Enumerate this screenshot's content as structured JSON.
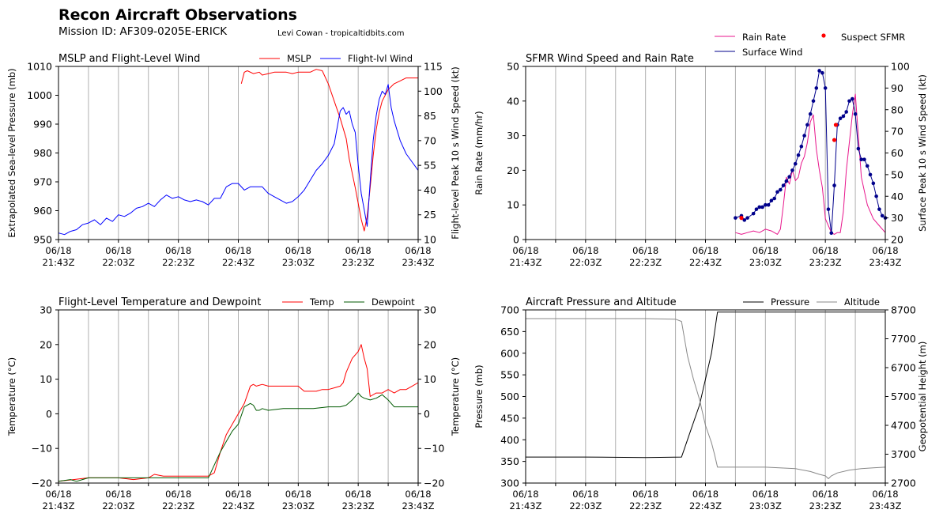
{
  "header": {
    "title": "Recon Aircraft Observations",
    "mission": "Mission ID: AF309-0205E-ERICK",
    "credit": "Levi Cowan - tropicaltidbits.com"
  },
  "time_ticks": [
    {
      "date": "06/18",
      "time": "21:43Z"
    },
    {
      "date": "06/18",
      "time": "22:03Z"
    },
    {
      "date": "06/18",
      "time": "22:23Z"
    },
    {
      "date": "06/18",
      "time": "22:43Z"
    },
    {
      "date": "06/18",
      "time": "23:03Z"
    },
    {
      "date": "06/18",
      "time": "23:23Z"
    },
    {
      "date": "06/18",
      "time": "23:43Z"
    }
  ],
  "colors": {
    "mslp": "#ff0000",
    "wind": "#0000ff",
    "rain": "#e8168c",
    "sfmr": "#00008b",
    "suspect": "#ff0000",
    "temp": "#ff0000",
    "dew": "#005a00",
    "pressure": "#000000",
    "altitude": "#888888",
    "grid": "#b0b0b0"
  },
  "chart_data": [
    {
      "id": "mslp-wind",
      "type": "line",
      "title": "MSLP and Flight-Level Wind",
      "x_unit": "minutes after 21:43Z",
      "xlim": [
        0,
        120
      ],
      "ylabel_left": "Extrapolated Sea-level Pressure (mb)",
      "ylabel_right": "Flight-level Peak 10 s Wind Speed (kt)",
      "ylim_left": [
        950,
        1010
      ],
      "ylim_right": [
        10,
        115
      ],
      "yticks_left": [
        "950",
        "960",
        "970",
        "980",
        "990",
        "1000",
        "1010"
      ],
      "yticks_right": [
        "10",
        "25",
        "40",
        "55",
        "70",
        "85",
        "100",
        "115"
      ],
      "series": [
        {
          "name": "MSLP",
          "axis": "left",
          "x": [
            61,
            62,
            63,
            65,
            67,
            68,
            70,
            72,
            74,
            76,
            78,
            80,
            82,
            84,
            86,
            88,
            90,
            92,
            94,
            96,
            97,
            99,
            101,
            102,
            103,
            104,
            105,
            106,
            107,
            108,
            110,
            112,
            114,
            116,
            118,
            120
          ],
          "values": [
            1004,
            1008,
            1008.5,
            1007.5,
            1008,
            1007,
            1007.5,
            1008,
            1008,
            1008,
            1007.5,
            1008,
            1008,
            1008,
            1009,
            1008.5,
            1004,
            998,
            992,
            985,
            978,
            968,
            957,
            953,
            958,
            968,
            979,
            988,
            994,
            998,
            1002,
            1004,
            1005,
            1006,
            1006,
            1006
          ]
        },
        {
          "name": "Flight-lvl Wind",
          "axis": "right",
          "x": [
            0,
            2,
            4,
            6,
            8,
            10,
            12,
            14,
            16,
            18,
            20,
            22,
            24,
            26,
            28,
            30,
            32,
            34,
            36,
            38,
            40,
            42,
            44,
            46,
            48,
            50,
            52,
            54,
            56,
            58,
            60,
            62,
            64,
            66,
            68,
            70,
            72,
            74,
            76,
            78,
            80,
            82,
            84,
            86,
            88,
            90,
            92,
            94,
            95,
            96,
            97,
            98,
            99,
            100,
            101,
            102,
            103,
            104,
            105,
            106,
            107,
            108,
            109,
            110,
            111,
            112,
            114,
            116,
            118,
            120
          ],
          "values": [
            14,
            13,
            15,
            16,
            19,
            20,
            22,
            19,
            23,
            21,
            25,
            24,
            26,
            29,
            30,
            32,
            30,
            34,
            37,
            35,
            36,
            34,
            33,
            34,
            33,
            31,
            35,
            35,
            42,
            44,
            44,
            40,
            42,
            42,
            42,
            38,
            36,
            34,
            32,
            33,
            36,
            40,
            46,
            52,
            56,
            61,
            68,
            88,
            90,
            86,
            88,
            80,
            75,
            55,
            38,
            28,
            18,
            45,
            70,
            85,
            95,
            100,
            98,
            104,
            90,
            82,
            70,
            62,
            57,
            52
          ]
        }
      ]
    },
    {
      "id": "sfmr-rain",
      "type": "line",
      "title": "SFMR Wind Speed and Rain Rate",
      "x_unit": "minutes after 21:43Z",
      "xlim": [
        0,
        120
      ],
      "ylabel_left": "Rain Rate (mm/hr)",
      "ylabel_right": "Surface Peak 10 s Wind Speed (kt)",
      "ylim_left": [
        0,
        50
      ],
      "ylim_right": [
        20,
        100
      ],
      "yticks_left": [
        "0",
        "10",
        "20",
        "30",
        "40",
        "50"
      ],
      "yticks_right": [
        "20",
        "30",
        "40",
        "50",
        "60",
        "70",
        "80",
        "90",
        "100"
      ],
      "series": [
        {
          "name": "Rain Rate",
          "axis": "left",
          "x": [
            70,
            72,
            74,
            76,
            78,
            80,
            82,
            84,
            85,
            86,
            87,
            88,
            89,
            90,
            91,
            92,
            93,
            94,
            95,
            96,
            97,
            98,
            99,
            100,
            101,
            102,
            103,
            104,
            105,
            106,
            107,
            108,
            109,
            110,
            111,
            112,
            114,
            116,
            118,
            120
          ],
          "values": [
            2,
            1.5,
            2,
            2.5,
            2,
            3,
            2.5,
            1.5,
            3,
            10,
            18,
            16,
            20,
            17,
            18,
            22,
            24,
            28,
            34,
            36,
            26,
            20,
            15,
            6,
            4,
            2,
            1.5,
            2,
            2,
            8,
            20,
            28,
            36,
            42,
            30,
            18,
            10,
            6,
            4,
            2
          ]
        },
        {
          "name": "Surface Wind",
          "axis": "right",
          "x": [
            70,
            72,
            73,
            74,
            76,
            77,
            78,
            79,
            80,
            81,
            82,
            83,
            84,
            85,
            86,
            87,
            88,
            89,
            90,
            91,
            92,
            93,
            94,
            95,
            96,
            97,
            98,
            99,
            100,
            101,
            102,
            103,
            104,
            105,
            106,
            107,
            108,
            109,
            110,
            111,
            112,
            113,
            114,
            115,
            116,
            117,
            118,
            119,
            120
          ],
          "values": [
            30,
            31,
            29,
            30,
            32,
            34,
            35,
            35,
            36,
            36,
            38,
            39,
            42,
            43,
            45,
            47,
            49,
            52,
            55,
            59,
            63,
            68,
            73,
            78,
            84,
            90,
            98,
            97,
            90,
            34,
            23,
            45,
            73,
            76,
            77,
            79,
            84,
            85,
            78,
            62,
            57,
            57,
            54,
            50,
            46,
            40,
            34,
            31,
            30
          ]
        },
        {
          "name": "Suspect SFMR",
          "axis": "right",
          "kind": "scatter",
          "x": [
            72,
            103,
            103.5
          ],
          "values": [
            30,
            66,
            73
          ]
        }
      ]
    },
    {
      "id": "temp-dew",
      "type": "line",
      "title": "Flight-Level Temperature and Dewpoint",
      "x_unit": "minutes after 21:43Z",
      "xlim": [
        0,
        120
      ],
      "ylabel_left": "Temperature (°C)",
      "ylabel_right": "Temperature (°C)",
      "ylim_left": [
        -20,
        30
      ],
      "ylim_right": [
        -20,
        30
      ],
      "yticks_left": [
        "−20",
        "−10",
        "0",
        "10",
        "20",
        "30"
      ],
      "yticks_right": [
        "−20",
        "−10",
        "0",
        "10",
        "20",
        "30"
      ],
      "series": [
        {
          "name": "Temp",
          "axis": "left",
          "x": [
            0,
            5,
            10,
            15,
            20,
            25,
            30,
            32,
            35,
            40,
            45,
            50,
            52,
            54,
            56,
            58,
            60,
            62,
            64,
            65,
            66,
            68,
            70,
            72,
            74,
            76,
            78,
            80,
            82,
            84,
            86,
            88,
            90,
            92,
            94,
            95,
            96,
            97,
            98,
            99,
            100,
            101,
            102,
            103,
            104,
            106,
            108,
            110,
            112,
            114,
            116,
            118,
            120
          ],
          "values": [
            -19.5,
            -19,
            -18.5,
            -18.5,
            -18.5,
            -19,
            -18.5,
            -17.5,
            -18,
            -18,
            -18,
            -18,
            -17,
            -11,
            -6,
            -3,
            0,
            3,
            8,
            8.5,
            8,
            8.5,
            8,
            8,
            8,
            8,
            8,
            8,
            6.5,
            6.5,
            6.5,
            7,
            7,
            7.5,
            8,
            9,
            12,
            14,
            16,
            17,
            18,
            20,
            16,
            13,
            5,
            6,
            6,
            7,
            6,
            7,
            7,
            8,
            9
          ]
        },
        {
          "name": "Dewpoint",
          "axis": "left",
          "x": [
            0,
            4,
            6,
            8,
            10,
            15,
            20,
            25,
            30,
            35,
            40,
            45,
            50,
            54,
            56,
            58,
            60,
            62,
            64,
            65,
            66,
            67,
            68,
            70,
            75,
            80,
            85,
            90,
            94,
            96,
            98,
            100,
            101,
            102,
            104,
            106,
            108,
            110,
            112,
            114,
            116,
            118,
            120
          ],
          "values": [
            -19.5,
            -19,
            -19.5,
            -19,
            -18.5,
            -18.5,
            -18.5,
            -18.5,
            -18.5,
            -18.5,
            -18.5,
            -18.5,
            -18.5,
            -11,
            -8,
            -5,
            -3,
            2,
            3,
            2.5,
            1,
            1,
            1.5,
            1,
            1.5,
            1.5,
            1.5,
            2,
            2,
            2.5,
            4,
            6,
            5,
            4.5,
            4,
            4.5,
            5.5,
            4,
            2,
            2,
            2,
            2,
            2
          ]
        }
      ]
    },
    {
      "id": "pressure-altitude",
      "type": "line",
      "title": "Aircraft Pressure and Altitude",
      "x_unit": "minutes after 21:43Z",
      "xlim": [
        0,
        120
      ],
      "ylabel_left": "Pressure (mb)",
      "ylabel_right": "Geopotential Height (m)",
      "ylim_left": [
        300,
        700
      ],
      "ylim_right": [
        2700,
        8700
      ],
      "yticks_left": [
        "300",
        "350",
        "400",
        "450",
        "500",
        "550",
        "600",
        "650",
        "700"
      ],
      "yticks_right": [
        "2700",
        "3700",
        "4700",
        "5700",
        "6700",
        "7700",
        "8700"
      ],
      "series": [
        {
          "name": "Pressure",
          "axis": "left",
          "x": [
            0,
            20,
            40,
            52,
            53,
            55,
            58,
            60,
            62,
            64,
            80,
            100,
            120
          ],
          "values": [
            360,
            360,
            359,
            360,
            380,
            420,
            480,
            540,
            600,
            695,
            695,
            695,
            695
          ]
        },
        {
          "name": "Altitude",
          "axis": "right",
          "x": [
            0,
            20,
            40,
            50,
            52,
            54,
            56,
            58,
            60,
            62,
            63,
            64,
            70,
            80,
            90,
            95,
            98,
            100,
            101,
            102,
            104,
            108,
            112,
            116,
            120
          ],
          "values": [
            8400,
            8400,
            8400,
            8380,
            8300,
            7100,
            6300,
            5600,
            4700,
            4100,
            3700,
            3250,
            3250,
            3250,
            3200,
            3100,
            3000,
            2950,
            2850,
            2950,
            3050,
            3150,
            3200,
            3230,
            3250
          ]
        }
      ]
    }
  ]
}
